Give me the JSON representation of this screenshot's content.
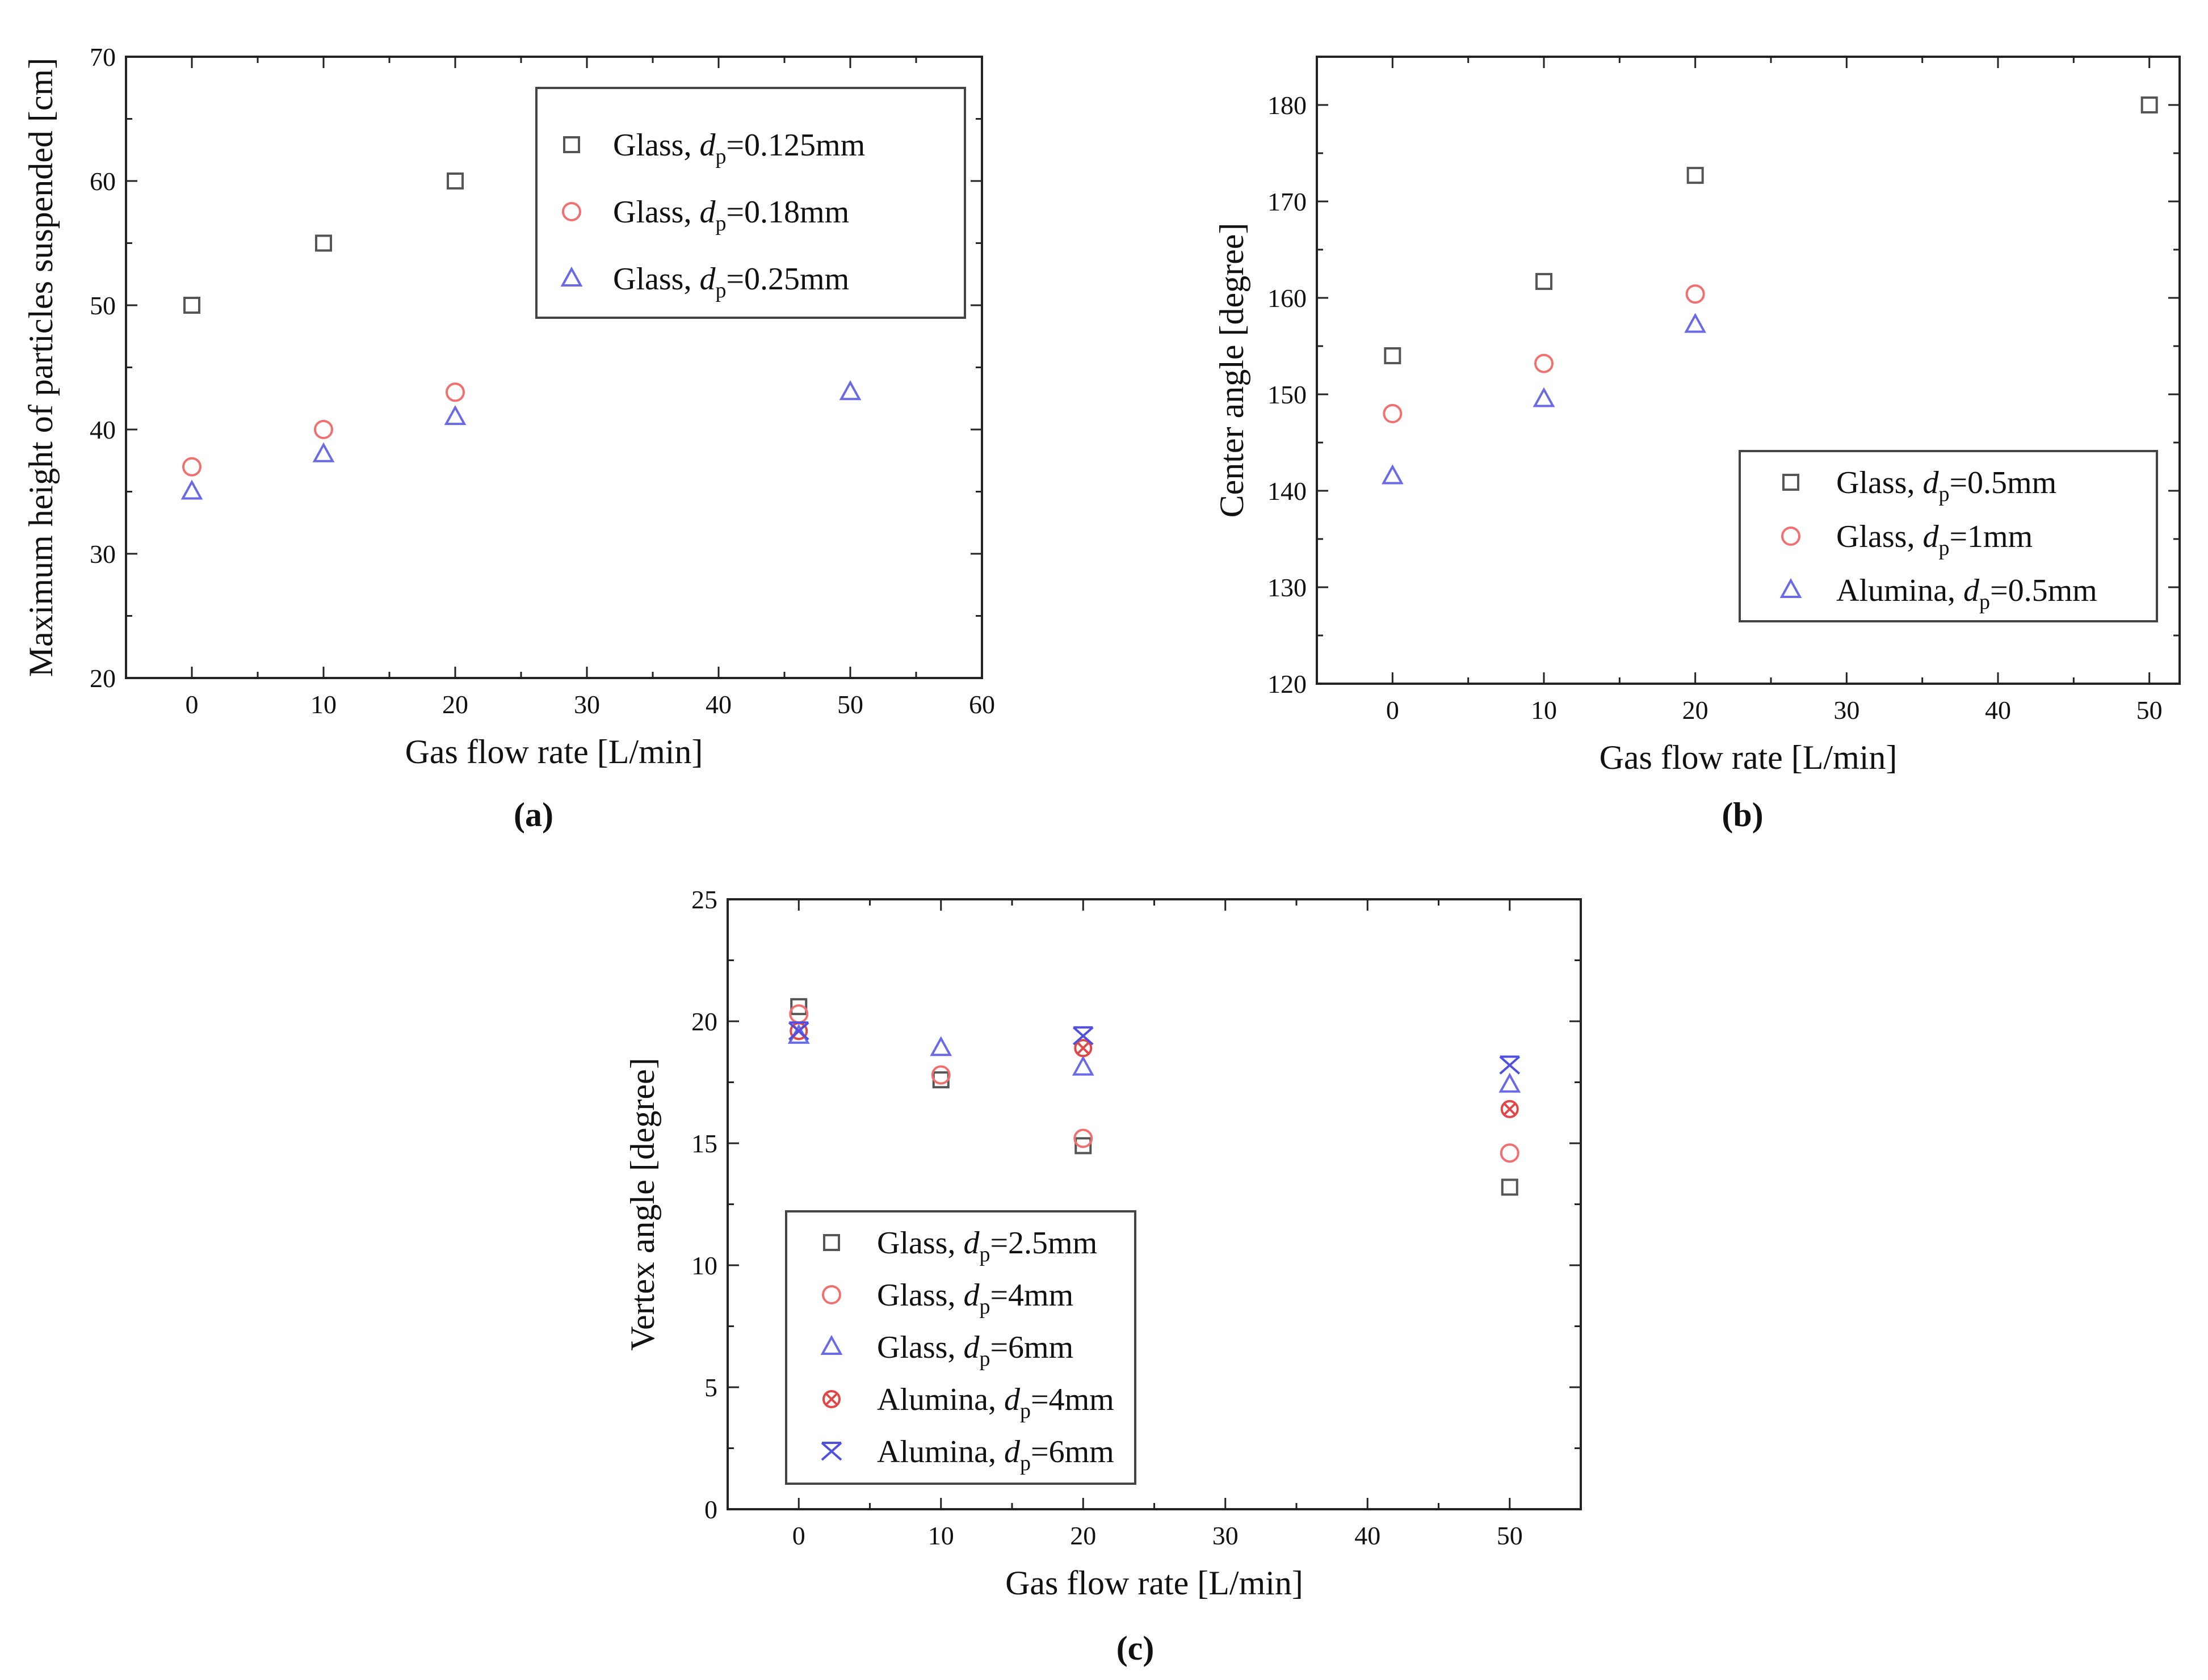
{
  "panel_labels": [
    "(a)",
    "(b)",
    "(c)"
  ],
  "chart_data": [
    {
      "type": "scatter",
      "id": "a",
      "xlabel": "Gas flow rate [L/min]",
      "ylabel": "Maximum height of particles suspended [cm]",
      "xlim": [
        -5,
        60
      ],
      "ylim": [
        20,
        70
      ],
      "xticks": [
        0,
        10,
        20,
        30,
        40,
        50,
        60
      ],
      "yticks": [
        20,
        30,
        40,
        50,
        60,
        70
      ],
      "legend_position": "top-right",
      "series": [
        {
          "name": "Glass, ",
          "subscript_label": "p",
          "value_label": "=0.125mm",
          "marker": "square",
          "color": "#555555",
          "x": [
            0,
            10,
            20
          ],
          "y": [
            50,
            55,
            60
          ]
        },
        {
          "name": "Glass, ",
          "subscript_label": "p",
          "value_label": "=0.18mm",
          "marker": "circle",
          "color": "#f07070",
          "x": [
            0,
            10,
            20
          ],
          "y": [
            37,
            40,
            43
          ]
        },
        {
          "name": "Glass, ",
          "subscript_label": "p",
          "value_label": "=0.25mm",
          "marker": "triangle",
          "color": "#6a6ae6",
          "x": [
            0,
            10,
            20,
            50
          ],
          "y": [
            35,
            38,
            41,
            43
          ]
        }
      ]
    },
    {
      "type": "scatter",
      "id": "b",
      "xlabel": "Gas flow rate [L/min]",
      "ylabel": "Center angle [degree]",
      "xlim": [
        -5,
        52
      ],
      "ylim": [
        120,
        185
      ],
      "xticks": [
        0,
        10,
        20,
        30,
        40,
        50
      ],
      "yticks": [
        120,
        130,
        140,
        150,
        160,
        170,
        180
      ],
      "legend_position": "bottom-right",
      "series": [
        {
          "name": "Glass, ",
          "subscript_label": "p",
          "value_label": "=0.5mm",
          "marker": "square",
          "color": "#555555",
          "x": [
            0,
            10,
            20,
            50
          ],
          "y": [
            154,
            161.7,
            172.7,
            180
          ]
        },
        {
          "name": "Glass, ",
          "subscript_label": "p",
          "value_label": "=1mm",
          "marker": "circle",
          "color": "#f07070",
          "x": [
            0,
            10,
            20
          ],
          "y": [
            148,
            153.2,
            160.4
          ]
        },
        {
          "name": "Alumina, ",
          "subscript_label": "p",
          "value_label": "=0.5mm",
          "marker": "triangle",
          "color": "#6a6ae6",
          "x": [
            0,
            10,
            20
          ],
          "y": [
            141.5,
            149.5,
            157.2
          ]
        }
      ]
    },
    {
      "type": "scatter",
      "id": "c",
      "xlabel": "Gas flow rate [L/min]",
      "ylabel": "Vertex angle [degree]",
      "xlim": [
        -5,
        55
      ],
      "ylim": [
        0,
        25
      ],
      "xticks": [
        0,
        10,
        20,
        30,
        40,
        50
      ],
      "yticks": [
        0,
        5,
        10,
        15,
        20,
        25
      ],
      "legend_position": "bottom-left",
      "series": [
        {
          "name": "Glass, ",
          "subscript_label": "p",
          "value_label": "=2.5mm",
          "marker": "square",
          "color": "#555555",
          "x": [
            0,
            10,
            20,
            50
          ],
          "y": [
            20.6,
            17.6,
            14.9,
            13.2
          ]
        },
        {
          "name": "Glass, ",
          "subscript_label": "p",
          "value_label": "=4mm",
          "marker": "circle",
          "color": "#f07070",
          "x": [
            0,
            10,
            20,
            50
          ],
          "y": [
            20.3,
            17.8,
            15.2,
            14.6
          ]
        },
        {
          "name": "Glass, ",
          "subscript_label": "p",
          "value_label": "=6mm",
          "marker": "triangle",
          "color": "#6a6ae6",
          "x": [
            0,
            10,
            20,
            50
          ],
          "y": [
            19.4,
            18.9,
            18.1,
            17.4
          ]
        },
        {
          "name": "Alumina, ",
          "subscript_label": "p",
          "value_label": "=4mm",
          "marker": "circle-x",
          "color": "#e04848",
          "x": [
            0,
            20,
            50
          ],
          "y": [
            19.6,
            18.9,
            16.4
          ]
        },
        {
          "name": "Alumina, ",
          "subscript_label": "p",
          "value_label": "=6mm",
          "marker": "x-cross",
          "color": "#5050e0",
          "x": [
            0,
            20,
            50
          ],
          "y": [
            19.6,
            19.4,
            18.2
          ]
        }
      ]
    }
  ]
}
